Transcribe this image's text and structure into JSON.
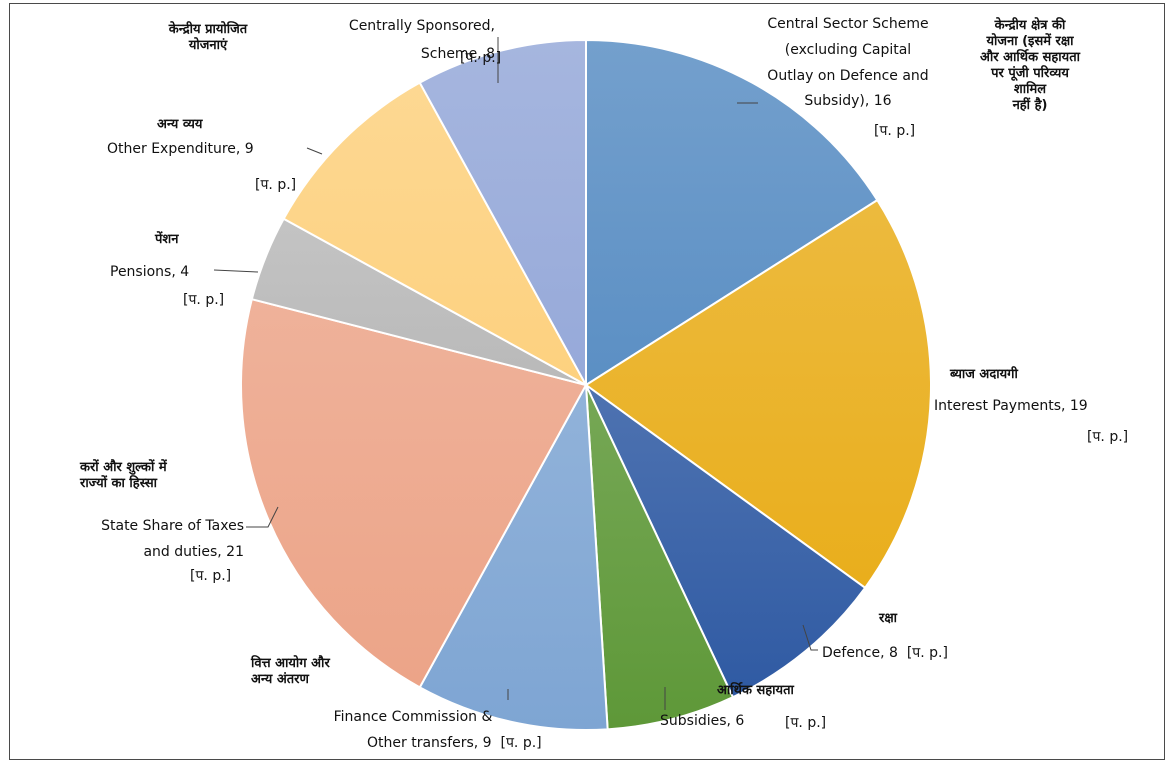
{
  "chart_data": {
    "type": "pie",
    "title": "",
    "unit_note": "[प. p.]",
    "slices": [
      {
        "hi": "केन्द्रीय क्षेत्र की योजना (इसमें रक्षा और आर्थिक सहायता पर पूंजी परिव्यय शामिल नहीं है)",
        "en": "Central Sector Scheme (excluding Capital Outlay on Defence and Subsidy)",
        "value": 16,
        "color": "#5b8fc4"
      },
      {
        "hi": "ब्याज अदायगी",
        "en": "Interest Payments",
        "value": 19,
        "color": "#e9ae1c"
      },
      {
        "hi": "रक्षा",
        "en": "Defence",
        "value": 8,
        "color": "#2f5aa3"
      },
      {
        "hi": "आर्थिक सहायता",
        "en": "Subsidies",
        "value": 6,
        "color": "#5e9838"
      },
      {
        "hi": "वित्त आयोग और अन्य अंतरण",
        "en": "Finance Commission & Other transfers",
        "value": 9,
        "color": "#7ea5d3"
      },
      {
        "hi": "करों और शुल्कों में राज्यों का हिस्सा",
        "en": "State Share of Taxes and duties",
        "value": 21,
        "color": "#eca488"
      },
      {
        "hi": "पेंशन",
        "en": "Pensions",
        "value": 4,
        "color": "#b9b9b9"
      },
      {
        "hi": "अन्य व्यय",
        "en": "Other Expenditure",
        "value": 9,
        "color": "#fdd17f"
      },
      {
        "hi": "केन्द्रीय प्रायोजित योजनाएं",
        "en": "Centrally Sponsored Scheme",
        "value": 8,
        "color": "#96a9d9"
      }
    ]
  },
  "labels": {
    "central_sector": {
      "hi_lines": [
        "केन्द्रीय क्षेत्र की",
        "योजना (इसमें रक्षा",
        "और आर्थिक सहायता",
        "पर पूंजी परिव्यय",
        "शामिल",
        "नहीं है)"
      ],
      "en_lines": [
        "Central Sector Scheme",
        "(excluding Capital",
        "Outlay on Defence and",
        "Subsidy), 16"
      ],
      "pp": "[प. p.]"
    },
    "interest": {
      "hi": "ब्याज अदायगी",
      "en": "Interest Payments, 19",
      "pp": "[प. p.]"
    },
    "defence": {
      "hi": "रक्षा",
      "en": "Defence, 8",
      "pp": "[प. p.]"
    },
    "subsidies": {
      "hi": "आर्थिक सहायता",
      "en": "Subsidies, 6",
      "pp": "[प. p.]"
    },
    "finance": {
      "hi_lines": [
        "वित्त आयोग और",
        "अन्य अंतरण"
      ],
      "en_lines": [
        "Finance Commission &",
        "Other transfers, 9"
      ],
      "pp": "[प. p.]"
    },
    "state_share": {
      "hi_lines": [
        "करों और शुल्कों में",
        "राज्यों का हिस्सा"
      ],
      "en_lines": [
        "State Share of Taxes",
        "and duties, 21"
      ],
      "pp": "[प. p.]"
    },
    "pensions": {
      "hi": "पेंशन",
      "en": "Pensions, 4",
      "pp": "[प. p.]"
    },
    "other_exp": {
      "hi": "अन्य व्यय",
      "en": "Other Expenditure, 9",
      "pp": "[प. p.]"
    },
    "centrally_sponsored": {
      "hi_lines": [
        "केन्द्रीय प्रायोजित",
        "योजनाएं"
      ],
      "en_lines": [
        "Centrally Sponsored,",
        "Scheme, 8"
      ],
      "pp": "[प. p.]"
    }
  }
}
